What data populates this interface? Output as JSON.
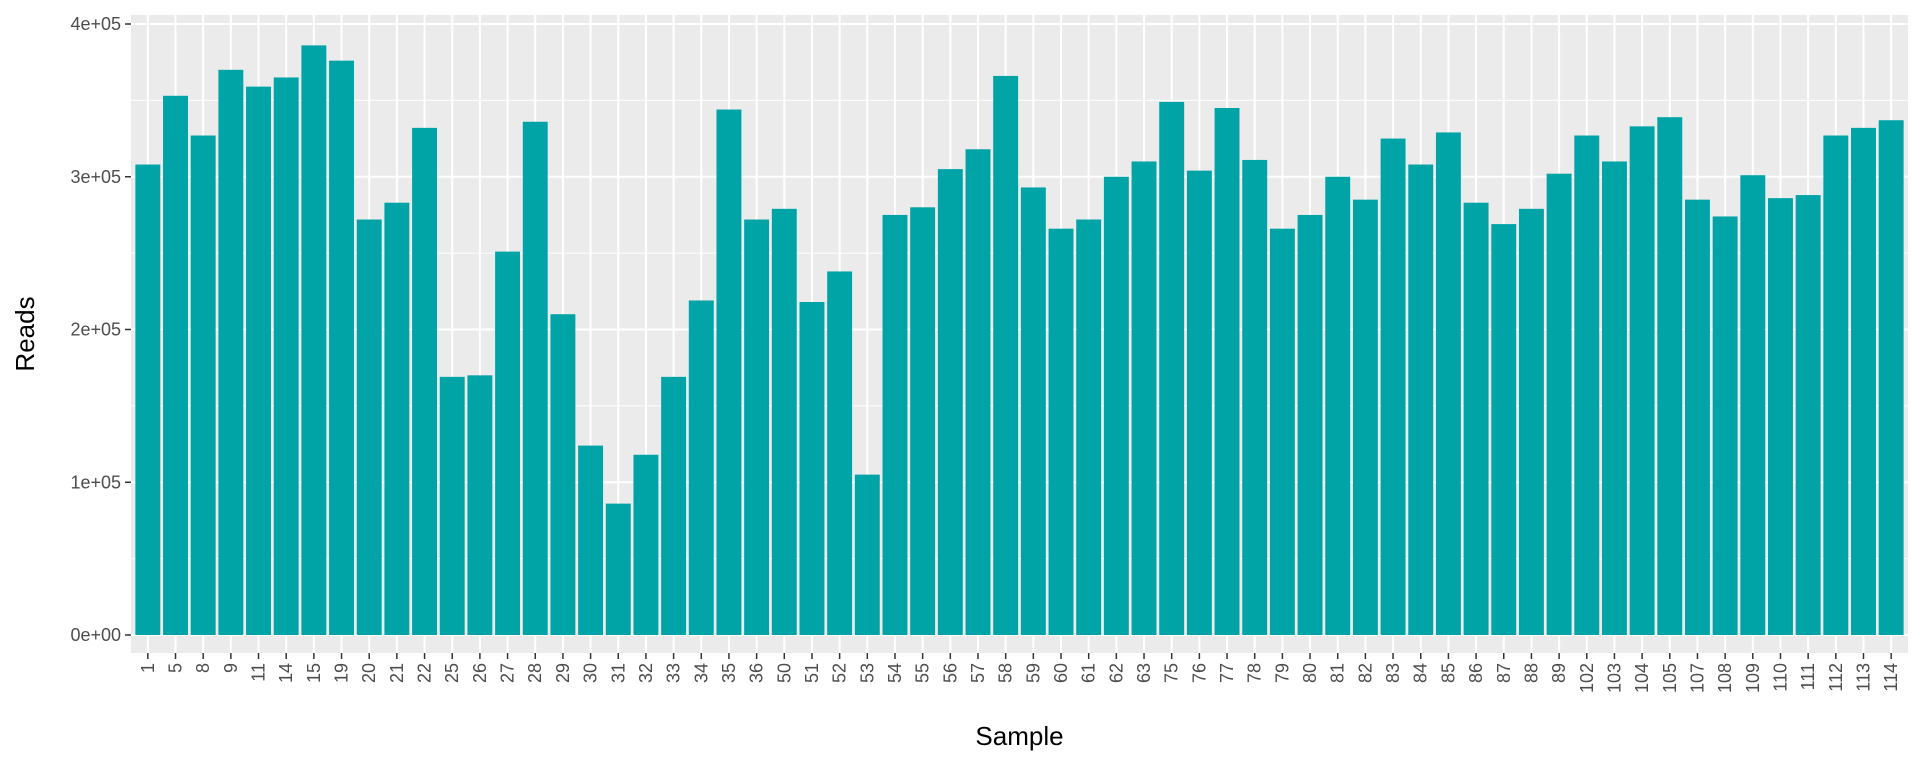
{
  "chart_data": {
    "type": "bar",
    "title": "",
    "xlabel": "Sample",
    "ylabel": "Reads",
    "ylim": [
      0,
      400000
    ],
    "yticks": [
      0,
      100000,
      200000,
      300000,
      400000
    ],
    "ytick_labels": [
      "0e+00",
      "1e+05",
      "2e+05",
      "3e+05",
      "4e+05"
    ],
    "grid": true,
    "legend": "none",
    "bar_color": "#00A3A6",
    "panel_background": "#EBEBEB",
    "grid_color": "#FFFFFF",
    "categories": [
      "1",
      "5",
      "8",
      "9",
      "11",
      "14",
      "15",
      "19",
      "20",
      "21",
      "22",
      "25",
      "26",
      "27",
      "28",
      "29",
      "30",
      "31",
      "32",
      "33",
      "34",
      "35",
      "36",
      "50",
      "51",
      "52",
      "53",
      "54",
      "55",
      "56",
      "57",
      "58",
      "59",
      "60",
      "61",
      "62",
      "63",
      "75",
      "76",
      "77",
      "78",
      "79",
      "80",
      "81",
      "82",
      "83",
      "84",
      "85",
      "86",
      "87",
      "88",
      "89",
      "102",
      "103",
      "104",
      "105",
      "107",
      "108",
      "109",
      "110",
      "111",
      "112",
      "113",
      "114"
    ],
    "values": [
      308000,
      353000,
      327000,
      370000,
      359000,
      365000,
      386000,
      376000,
      272000,
      283000,
      332000,
      169000,
      170000,
      251000,
      336000,
      210000,
      124000,
      86000,
      118000,
      169000,
      219000,
      344000,
      272000,
      279000,
      218000,
      238000,
      105000,
      275000,
      280000,
      305000,
      318000,
      366000,
      293000,
      266000,
      272000,
      300000,
      310000,
      349000,
      304000,
      345000,
      311000,
      266000,
      275000,
      300000,
      285000,
      325000,
      308000,
      329000,
      283000,
      269000,
      279000,
      302000,
      327000,
      310000,
      333000,
      339000,
      285000,
      274000,
      301000,
      286000,
      288000,
      327000,
      332000,
      337000
    ]
  }
}
